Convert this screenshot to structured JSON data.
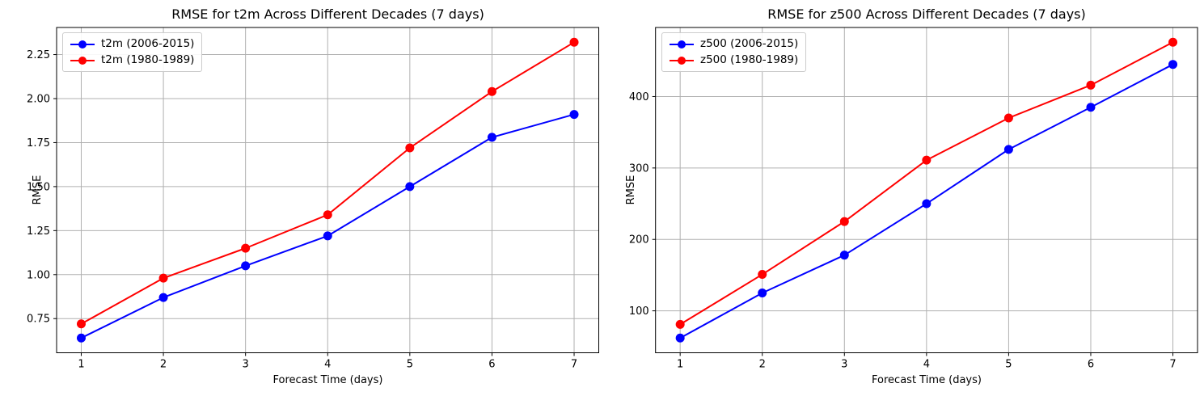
{
  "colors": {
    "series_blue": "#0000ff",
    "series_red": "#ff0000",
    "grid": "#b0b0b0",
    "spine": "#000000",
    "text": "#000000",
    "legend_border": "#cccccc"
  },
  "chart_data": [
    {
      "type": "line",
      "title": "RMSE for t2m Across Different Decades (7 days)",
      "xlabel": "Forecast Time (days)",
      "ylabel": "RMSE",
      "grid": true,
      "legend_position": "upper-left",
      "x": [
        1,
        2,
        3,
        4,
        5,
        6,
        7
      ],
      "x_tick_labels": [
        "1",
        "2",
        "3",
        "4",
        "5",
        "6",
        "7"
      ],
      "y_ticks": [
        0.75,
        1.0,
        1.25,
        1.5,
        1.75,
        2.0,
        2.25
      ],
      "y_tick_labels": [
        "0.75",
        "1.00",
        "1.25",
        "1.50",
        "1.75",
        "2.00",
        "2.25"
      ],
      "series": [
        {
          "name": "t2m (2006-2015)",
          "color": "#0000ff",
          "values": [
            0.64,
            0.87,
            1.05,
            1.22,
            1.5,
            1.78,
            1.91
          ]
        },
        {
          "name": "t2m (1980-1989)",
          "color": "#ff0000",
          "values": [
            0.72,
            0.98,
            1.15,
            1.34,
            1.72,
            2.04,
            2.32
          ]
        }
      ]
    },
    {
      "type": "line",
      "title": "RMSE for z500 Across Different Decades (7 days)",
      "xlabel": "Forecast Time (days)",
      "ylabel": "RMSE",
      "grid": true,
      "legend_position": "upper-left",
      "x": [
        1,
        2,
        3,
        4,
        5,
        6,
        7
      ],
      "x_tick_labels": [
        "1",
        "2",
        "3",
        "4",
        "5",
        "6",
        "7"
      ],
      "y_ticks": [
        100,
        200,
        300,
        400
      ],
      "y_tick_labels": [
        "100",
        "200",
        "300",
        "400"
      ],
      "series": [
        {
          "name": "z500 (2006-2015)",
          "color": "#0000ff",
          "values": [
            62,
            125,
            178,
            250,
            326,
            385,
            445
          ]
        },
        {
          "name": "z500 (1980-1989)",
          "color": "#ff0000",
          "values": [
            81,
            151,
            225,
            311,
            370,
            416,
            476
          ]
        }
      ]
    }
  ]
}
